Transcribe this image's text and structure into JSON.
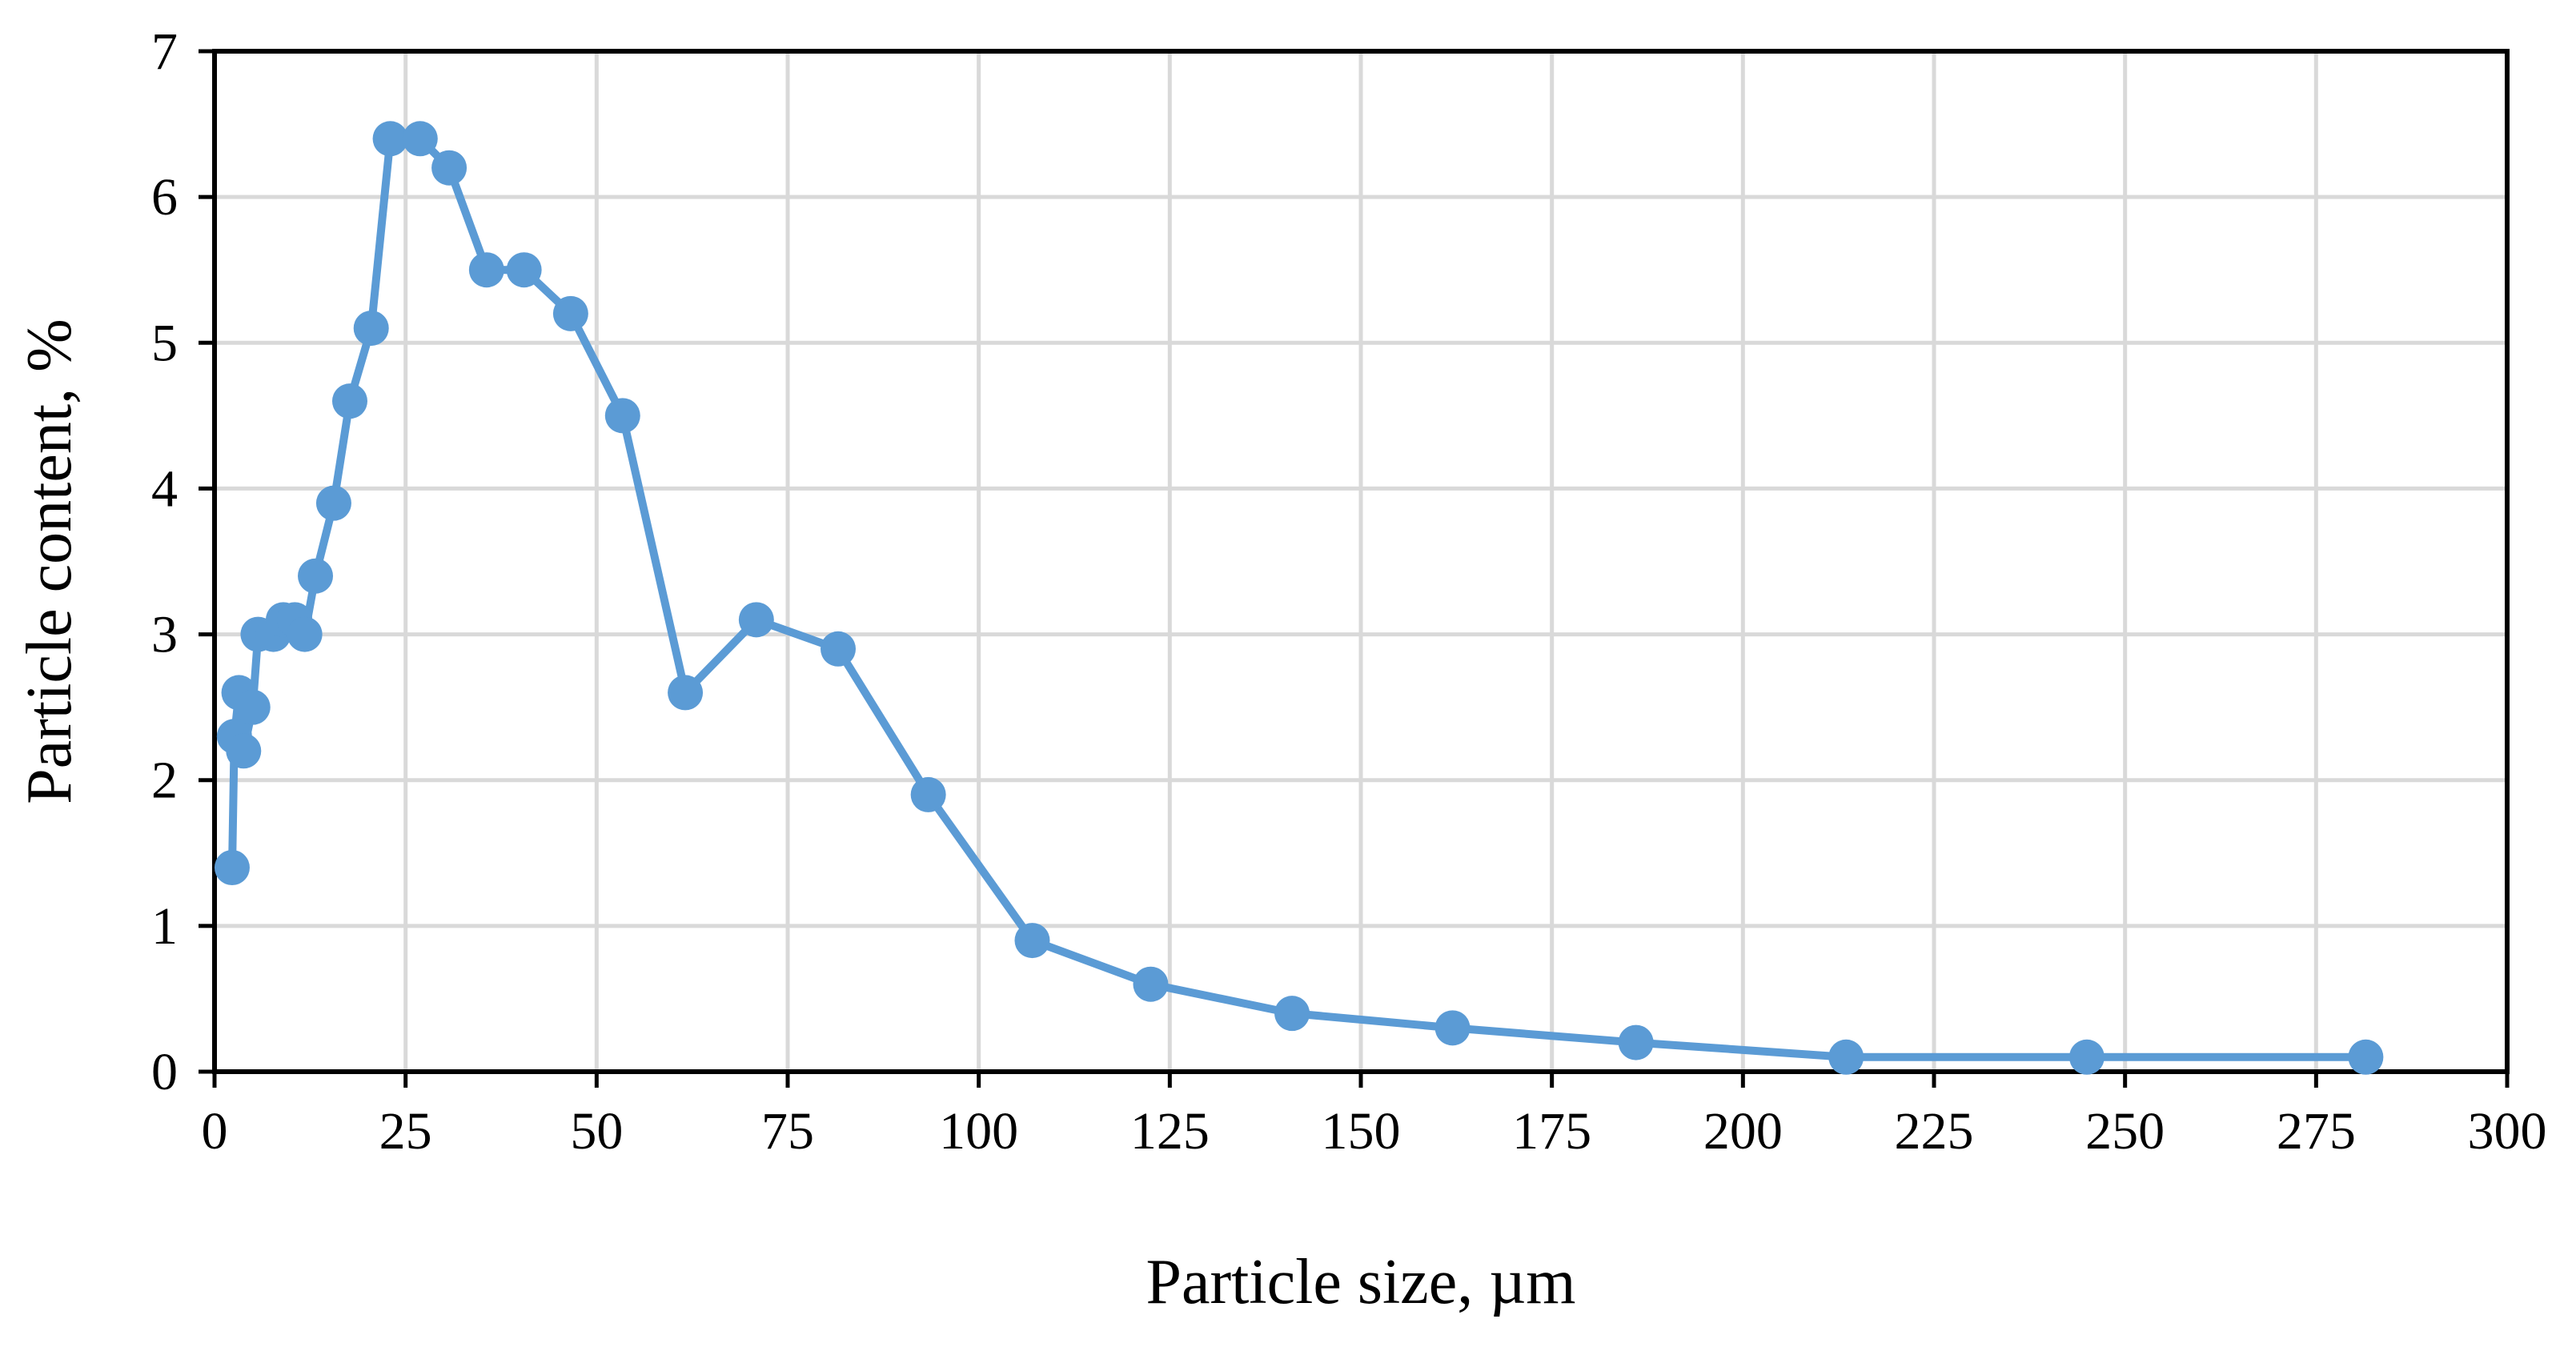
{
  "chart_data": {
    "type": "line",
    "title": "",
    "xlabel": "Particle size, µm",
    "ylabel": "Particle content, %",
    "xlim": [
      0,
      300
    ],
    "ylim": [
      0,
      7
    ],
    "xticks": [
      0,
      25,
      50,
      75,
      100,
      125,
      150,
      175,
      200,
      225,
      250,
      275,
      300
    ],
    "yticks": [
      0,
      1,
      2,
      3,
      4,
      5,
      6,
      7
    ],
    "grid": true,
    "legend": "none",
    "series": [
      {
        "name": "Particle content",
        "color": "#5b9bd5",
        "markers": true,
        "x": [
          2.3,
          2.6,
          3.2,
          3.8,
          5.0,
          5.7,
          7.7,
          9.0,
          10.5,
          11.8,
          13.2,
          15.6,
          17.7,
          20.5,
          23.0,
          26.9,
          30.7,
          35.6,
          40.5,
          46.6,
          53.4,
          61.6,
          70.9,
          81.6,
          93.4,
          107.0,
          122.5,
          141.0,
          162.0,
          186.0,
          213.5,
          245.0,
          281.5
        ],
        "y": [
          1.4,
          2.3,
          2.6,
          2.2,
          2.5,
          3.0,
          3.0,
          3.1,
          3.1,
          3.0,
          3.4,
          3.9,
          4.6,
          5.1,
          6.4,
          6.4,
          6.2,
          5.5,
          5.5,
          5.2,
          4.5,
          2.6,
          3.1,
          2.9,
          1.9,
          0.9,
          0.6,
          0.4,
          0.3,
          0.2,
          0.1,
          0.1,
          0.1
        ]
      }
    ]
  }
}
